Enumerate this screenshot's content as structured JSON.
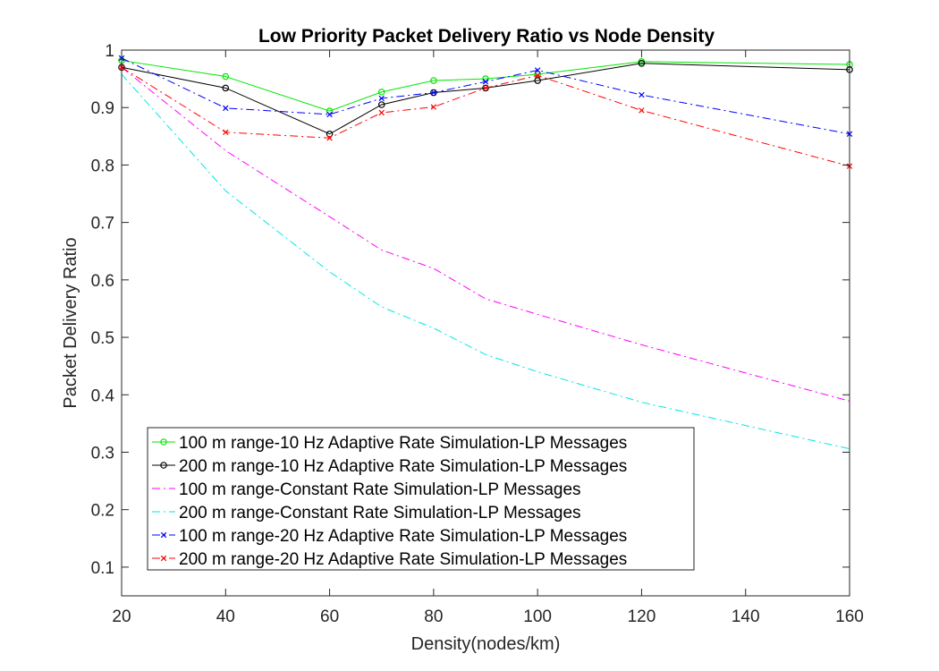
{
  "chart_data": {
    "type": "line",
    "title": "Low Priority Packet Delivery Ratio vs Node Density",
    "xlabel": "Density(nodes/km)",
    "ylabel": "Packet Delivery Ratio",
    "xlim": [
      20,
      160
    ],
    "ylim": [
      0.05,
      1.0
    ],
    "xticks": [
      20,
      40,
      60,
      80,
      100,
      120,
      140,
      160
    ],
    "xtick_labels": [
      "20",
      "40",
      "60",
      "80",
      "100",
      "120",
      "140",
      "160"
    ],
    "yticks": [
      0.1,
      0.2,
      0.3,
      0.4,
      0.5,
      0.6,
      0.7,
      0.8,
      0.9,
      1.0
    ],
    "ytick_labels": [
      "0.1",
      "0.2",
      "0.3",
      "0.4",
      "0.5",
      "0.6",
      "0.7",
      "0.8",
      "0.9",
      "1"
    ],
    "grid": false,
    "legend_position": "bottom-left",
    "series": [
      {
        "name": "100 m range-10 Hz Adaptive Rate Simulation-LP Messages",
        "color": "#00e600",
        "line": "solid",
        "marker": "circle",
        "x": [
          20,
          40,
          60,
          70,
          80,
          90,
          100,
          120,
          160
        ],
        "y": [
          0.982,
          0.954,
          0.894,
          0.927,
          0.947,
          0.95,
          0.958,
          0.98,
          0.975
        ]
      },
      {
        "name": "200 m range-10 Hz Adaptive Rate Simulation-LP Messages",
        "color": "#000000",
        "line": "solid",
        "marker": "circle",
        "x": [
          20,
          40,
          60,
          70,
          80,
          90,
          100,
          120,
          160
        ],
        "y": [
          0.97,
          0.934,
          0.854,
          0.905,
          0.926,
          0.934,
          0.947,
          0.977,
          0.966
        ]
      },
      {
        "name": "100 m range-Constant Rate Simulation-LP Messages",
        "color": "#ff00ff",
        "line": "dashdot",
        "marker": "none",
        "x": [
          20,
          40,
          60,
          70,
          80,
          90,
          100,
          120,
          160
        ],
        "y": [
          0.97,
          0.825,
          0.71,
          0.652,
          0.62,
          0.567,
          0.54,
          0.487,
          0.389
        ]
      },
      {
        "name": "200 m range-Constant Rate Simulation-LP Messages",
        "color": "#00e6e6",
        "line": "dashdot",
        "marker": "none",
        "x": [
          20,
          40,
          60,
          70,
          80,
          90,
          100,
          120,
          160
        ],
        "y": [
          0.958,
          0.755,
          0.614,
          0.553,
          0.516,
          0.47,
          0.44,
          0.387,
          0.306
        ]
      },
      {
        "name": "100 m range-20 Hz Adaptive Rate Simulation-LP Messages",
        "color": "#0000ff",
        "line": "dashdot",
        "marker": "x",
        "x": [
          20,
          40,
          60,
          70,
          80,
          90,
          100,
          120,
          160
        ],
        "y": [
          0.986,
          0.899,
          0.888,
          0.916,
          0.926,
          0.945,
          0.965,
          0.922,
          0.854
        ]
      },
      {
        "name": "200 m range-20 Hz Adaptive Rate Simulation-LP Messages",
        "color": "#ff0000",
        "line": "dashdot",
        "marker": "x",
        "x": [
          20,
          40,
          60,
          70,
          80,
          90,
          100,
          120,
          160
        ],
        "y": [
          0.97,
          0.857,
          0.847,
          0.891,
          0.901,
          0.934,
          0.956,
          0.895,
          0.798
        ]
      }
    ]
  }
}
